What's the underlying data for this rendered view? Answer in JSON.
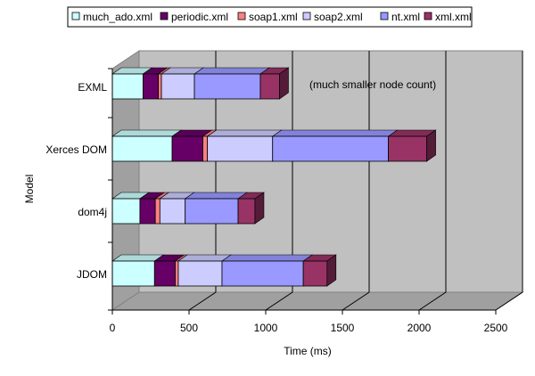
{
  "chart_data": {
    "type": "bar",
    "orientation": "horizontal",
    "stacked": true,
    "style": "3d",
    "categories": [
      "EXML",
      "Xerces DOM",
      "dom4j",
      "JDOM"
    ],
    "series": [
      {
        "name": "much_ado.xml",
        "color": "#ccffff",
        "values": [
          200,
          390,
          180,
          275
        ]
      },
      {
        "name": "periodic.xml",
        "color": "#660066",
        "values": [
          100,
          200,
          100,
          135
        ]
      },
      {
        "name": "soap1.xml",
        "color": "#ff8080",
        "values": [
          20,
          30,
          30,
          20
        ]
      },
      {
        "name": "soap2.xml",
        "color": "#ccccff",
        "values": [
          215,
          425,
          165,
          285
        ]
      },
      {
        "name": "nt.xml",
        "color": "#9999ff",
        "values": [
          430,
          755,
          345,
          530
        ]
      },
      {
        "name": "xml.xml",
        "color": "#993366",
        "values": [
          125,
          250,
          110,
          155
        ]
      }
    ],
    "annotations": [
      {
        "category": "EXML",
        "text": "(much smaller node count)"
      }
    ],
    "xlabel": "Time (ms)",
    "ylabel": "Model",
    "xlim": [
      0,
      2500
    ],
    "xticks": [
      0,
      500,
      1000,
      1500,
      2000,
      2500
    ],
    "grid": true,
    "legend_position": "top",
    "plot_color": "#c0c0c0"
  }
}
